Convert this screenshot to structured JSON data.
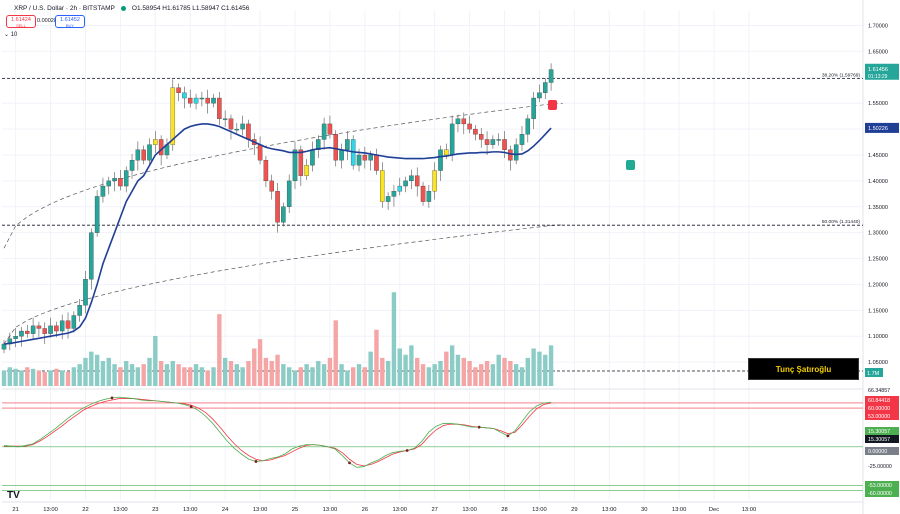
{
  "header": {
    "symbol": "XRP / U.S. Dollar · 2h · BITSTAMP",
    "ohlc": "O1.58954 H1.61785 L1.58947 C1.61456",
    "sell_price": "1.61424",
    "sell_label": "SELL",
    "spread": "0.00028",
    "buy_price": "1.61452",
    "buy_label": "BUY",
    "indicator_count": "10"
  },
  "banner_text": "Tunç Şatıroğlu",
  "colors": {
    "up": "#26a69a",
    "down": "#ef5350",
    "yellow": "#fbe321",
    "cyan": "#2fd6e8",
    "ma": "#1f3e96",
    "rsi": "#4caf50",
    "signal": "#f23645",
    "vol_up": "#8bcdc6",
    "vol_down": "#f5a5a5"
  },
  "chart_data": {
    "type": "candlestick",
    "y_axis": {
      "range": [
        1.0,
        1.73
      ],
      "ticks": [
        "1.70000",
        "1.65000",
        "1.60000",
        "1.55000",
        "1.50000",
        "1.45000",
        "1.40000",
        "1.35000",
        "1.30000",
        "1.25000",
        "1.20000",
        "1.15000",
        "1.10000",
        "1.05000"
      ],
      "tick_values": [
        1.7,
        1.65,
        1.6,
        1.55,
        1.5,
        1.45,
        1.4,
        1.35,
        1.3,
        1.25,
        1.2,
        1.15,
        1.1,
        1.05
      ]
    },
    "x_axis": {
      "labels": [
        "21",
        "13:00",
        "22",
        "13:00",
        "23",
        "13:00",
        "24",
        "13:00",
        "25",
        "13:00",
        "26",
        "13:00",
        "27",
        "13:00",
        "28",
        "13:00",
        "29",
        "13:00",
        "30",
        "13:00",
        "Dec",
        "13:00"
      ],
      "label_index": [
        2,
        8,
        14,
        20,
        26,
        32,
        38,
        44,
        50,
        56,
        62,
        68,
        74,
        80,
        86,
        92,
        98,
        104,
        110,
        116,
        122,
        128
      ]
    },
    "fib_levels": [
      {
        "label": "38.20% (1.59769)",
        "value": 1.5977
      },
      {
        "label": "50.00% (1.31440)",
        "value": 1.3144
      }
    ],
    "last_price": {
      "value": "1.61456",
      "countdown": "01:13:29",
      "price": 1.6146
    },
    "ma_last": {
      "value": "1.50226",
      "price": 1.5023
    },
    "volume_label": "1.7M",
    "candles_close": [
      1.085,
      1.095,
      1.1,
      1.11,
      1.105,
      1.12,
      1.115,
      1.105,
      1.12,
      1.11,
      1.13,
      1.115,
      1.14,
      1.16,
      1.21,
      1.3,
      1.37,
      1.39,
      1.4,
      1.405,
      1.39,
      1.42,
      1.44,
      1.46,
      1.44,
      1.47,
      1.48,
      1.45,
      1.47,
      1.58,
      1.57,
      1.56,
      1.55,
      1.56,
      1.56,
      1.55,
      1.56,
      1.52,
      1.52,
      1.5,
      1.5,
      1.51,
      1.48,
      1.47,
      1.44,
      1.4,
      1.38,
      1.32,
      1.35,
      1.4,
      1.46,
      1.41,
      1.43,
      1.46,
      1.48,
      1.51,
      1.49,
      1.44,
      1.46,
      1.48,
      1.43,
      1.45,
      1.44,
      1.45,
      1.42,
      1.36,
      1.37,
      1.38,
      1.39,
      1.4,
      1.41,
      1.39,
      1.36,
      1.38,
      1.42,
      1.46,
      1.45,
      1.51,
      1.52,
      1.51,
      1.5,
      1.49,
      1.48,
      1.47,
      1.48,
      1.48,
      1.46,
      1.44,
      1.47,
      1.49,
      1.52,
      1.56,
      1.57,
      1.59,
      1.615
    ],
    "volume": [
      0.5,
      0.6,
      0.55,
      0.5,
      0.6,
      0.55,
      0.5,
      0.45,
      0.5,
      0.55,
      0.5,
      0.45,
      0.6,
      0.7,
      0.9,
      1.1,
      1.0,
      0.8,
      0.9,
      0.7,
      0.6,
      0.8,
      0.7,
      0.6,
      0.7,
      0.9,
      1.6,
      0.8,
      0.7,
      0.8,
      0.7,
      0.6,
      0.6,
      0.7,
      0.6,
      0.5,
      0.6,
      2.3,
      0.9,
      0.8,
      0.7,
      0.6,
      0.8,
      1.2,
      1.5,
      0.9,
      0.8,
      1.0,
      0.7,
      0.6,
      0.5,
      0.6,
      0.7,
      0.6,
      0.8,
      0.7,
      0.9,
      2.1,
      0.7,
      0.5,
      0.6,
      0.7,
      0.6,
      1.1,
      1.8,
      0.9,
      0.8,
      3.0,
      1.2,
      1.0,
      1.3,
      0.9,
      0.7,
      0.6,
      0.7,
      0.8,
      1.1,
      1.3,
      1.0,
      0.9,
      0.8,
      0.6,
      0.7,
      0.8,
      0.7,
      1.0,
      0.9,
      0.8,
      0.7,
      0.6,
      0.9,
      1.2,
      1.1,
      1.0,
      1.3
    ],
    "ma_line": [
      1.085,
      1.086,
      1.088,
      1.09,
      1.092,
      1.094,
      1.096,
      1.098,
      1.1,
      1.102,
      1.104,
      1.106,
      1.11,
      1.118,
      1.135,
      1.165,
      1.2,
      1.24,
      1.27,
      1.3,
      1.33,
      1.36,
      1.38,
      1.4,
      1.41,
      1.43,
      1.45,
      1.46,
      1.47,
      1.48,
      1.49,
      1.5,
      1.505,
      1.508,
      1.51,
      1.51,
      1.508,
      1.505,
      1.5,
      1.495,
      1.49,
      1.485,
      1.48,
      1.475,
      1.47,
      1.465,
      1.462,
      1.46,
      1.458,
      1.455,
      1.455,
      1.455,
      1.457,
      1.46,
      1.462,
      1.463,
      1.464,
      1.462,
      1.46,
      1.458,
      1.456,
      1.455,
      1.454,
      1.452,
      1.45,
      1.448,
      1.446,
      1.445,
      1.444,
      1.443,
      1.443,
      1.443,
      1.443,
      1.444,
      1.445,
      1.447,
      1.448,
      1.45,
      1.452,
      1.453,
      1.454,
      1.454,
      1.455,
      1.455,
      1.456,
      1.456,
      1.455,
      1.452,
      1.451,
      1.452,
      1.458,
      1.467,
      1.478,
      1.49,
      1.502
    ],
    "oscillator": {
      "panel": {
        "top_value": "66.34857",
        "fast_value": "60.84418",
        "level_60": "60.00000",
        "level_53": "53.00000",
        "right_a": "15.30057",
        "right_b": "15.30057",
        "zero": "0.00000",
        "neg25": "-25.00000",
        "neg53": "-53.00000",
        "neg60": "-60.00000"
      },
      "levels": [
        60,
        53,
        0,
        -53,
        -60
      ],
      "range": [
        -70,
        75
      ],
      "fast": [
        2,
        1,
        0,
        2,
        4,
        10,
        17,
        24,
        32,
        40,
        47,
        53,
        58,
        62,
        65,
        67,
        68,
        67,
        66,
        64,
        63,
        63,
        62,
        61,
        60,
        58,
        55,
        50,
        42,
        32,
        20,
        8,
        -2,
        -10,
        -17,
        -20,
        -19,
        -16,
        -14,
        -10,
        -3,
        1,
        3,
        3,
        2,
        0,
        -3,
        -12,
        -22,
        -28,
        -27,
        -22,
        -18,
        -12,
        -8,
        -6,
        -5,
        -2,
        7,
        20,
        28,
        32,
        32,
        31,
        29,
        27,
        27,
        26,
        25,
        20,
        15,
        22,
        35,
        48,
        56,
        60,
        61
      ],
      "slow": [
        1,
        1,
        1,
        1,
        3,
        8,
        14,
        21,
        28,
        36,
        43,
        50,
        55,
        59,
        62,
        64,
        66,
        66,
        66,
        65,
        64,
        63,
        62,
        61,
        60,
        59,
        57,
        53,
        47,
        38,
        27,
        15,
        4,
        -5,
        -12,
        -17,
        -19,
        -18,
        -15,
        -12,
        -7,
        -2,
        2,
        3,
        2,
        0,
        -2,
        -8,
        -17,
        -24,
        -26,
        -24,
        -20,
        -15,
        -10,
        -7,
        -5,
        -3,
        3,
        14,
        23,
        29,
        31,
        31,
        30,
        28,
        27,
        26,
        25,
        22,
        18,
        20,
        30,
        42,
        52,
        58,
        60
      ]
    }
  }
}
